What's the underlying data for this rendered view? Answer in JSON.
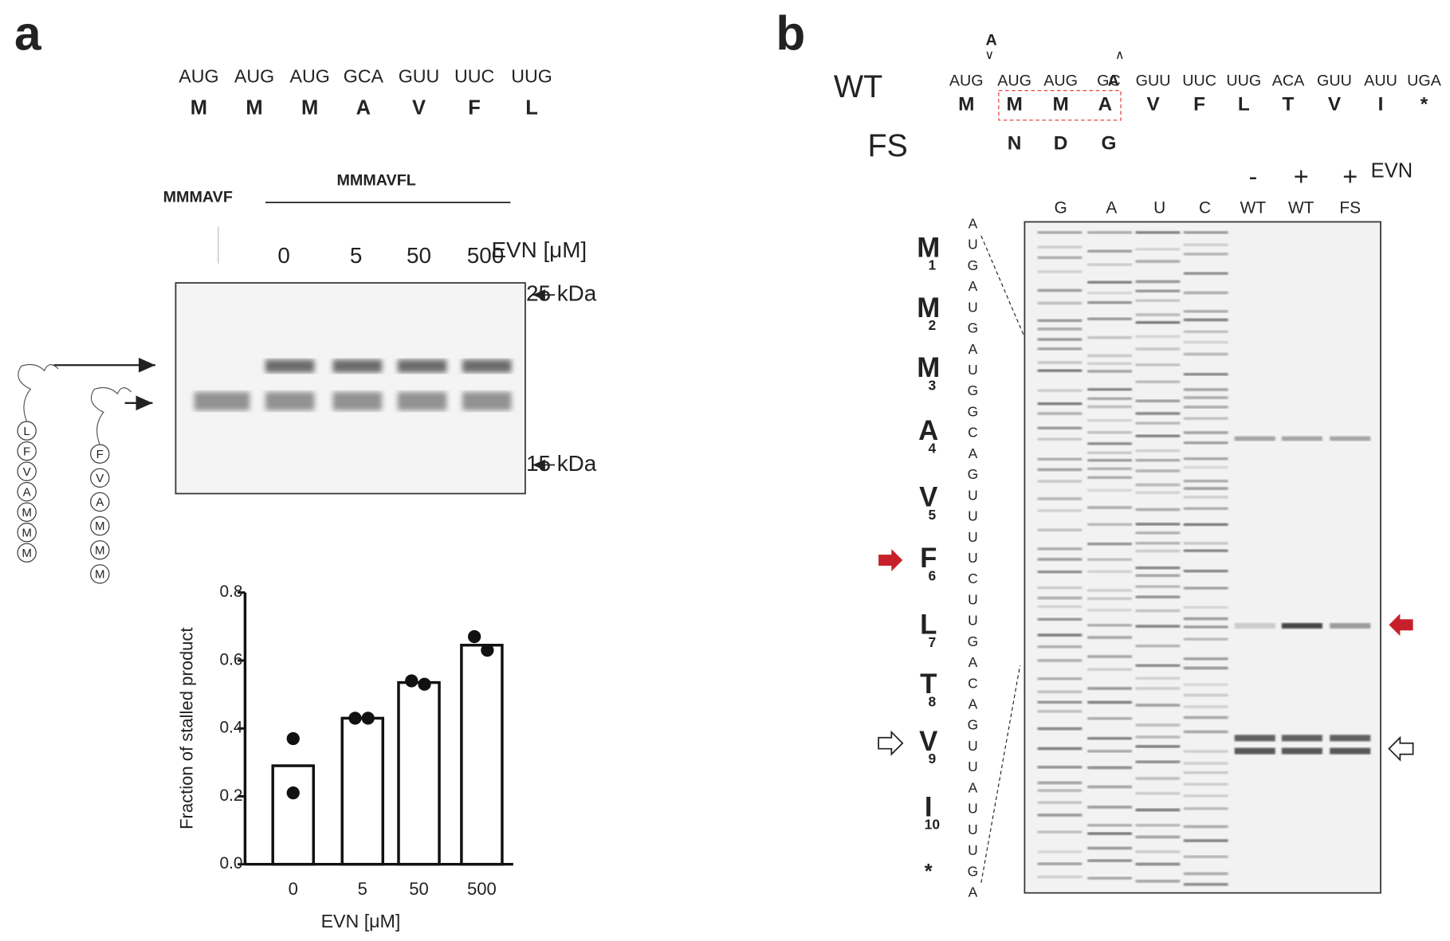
{
  "panel_a": {
    "label": "a",
    "codons": [
      "AUG",
      "AUG",
      "AUG",
      "GCA",
      "GUU",
      "UUC",
      "UUG"
    ],
    "amino_acids": [
      "M",
      "M",
      "M",
      "A",
      "V",
      "F",
      "L"
    ],
    "construct_short": "MMMAVF",
    "construct_long": "MMMAVFL",
    "lanes": [
      "0",
      "5",
      "50",
      "500"
    ],
    "lane_axis": "EVN [μM]",
    "markers": [
      "25 kDa",
      "15 kDa"
    ],
    "chain_long": [
      "L",
      "F",
      "V",
      "A",
      "M",
      "M",
      "M"
    ],
    "chain_short": [
      "F",
      "V",
      "A",
      "M",
      "M",
      "M"
    ]
  },
  "chart_data": {
    "type": "bar",
    "categories": [
      "0",
      "5",
      "50",
      "500"
    ],
    "values": [
      0.29,
      0.43,
      0.535,
      0.645
    ],
    "replicates": [
      [
        0.37,
        0.21
      ],
      [
        0.43,
        0.43
      ],
      [
        0.54,
        0.53
      ],
      [
        0.67,
        0.63
      ]
    ],
    "ylim": [
      0,
      0.8
    ],
    "yticks": [
      {
        "value": 0,
        "label": "0.0"
      },
      0.2,
      0.4,
      0.6,
      0.8
    ],
    "ylabel": "Fraction of stalled product",
    "xlabel": "EVN [μM]",
    "color": "#ffffff"
  },
  "panel_b": {
    "label": "b",
    "wt_label": "WT",
    "fs_label": "FS",
    "inserted": "A",
    "codons": [
      "AUG",
      "AUG",
      "AUG",
      "GC",
      "GUU",
      "UUC",
      "UUG",
      "ACA",
      "GUU",
      "AUU",
      "UGA"
    ],
    "codon_tail": "A",
    "wt_aa": [
      "M",
      "M",
      "M",
      "A",
      "V",
      "F",
      "L",
      "T",
      "V",
      "I",
      "*"
    ],
    "fs_aa": [
      "N",
      "D",
      "G"
    ],
    "evn_signs": [
      "-",
      "+",
      "+"
    ],
    "evn_label": "EVN",
    "lanes": [
      "G",
      "A",
      "U",
      "C",
      "WT",
      "WT",
      "FS"
    ],
    "sequence": [
      "A",
      "U",
      "G",
      "A",
      "U",
      "G",
      "A",
      "U",
      "G",
      "G",
      "C",
      "A",
      "G",
      "U",
      "U",
      "U",
      "U",
      "C",
      "U",
      "U",
      "G",
      "A",
      "C",
      "A",
      "G",
      "U",
      "U",
      "A",
      "U",
      "U",
      "U",
      "G",
      "A"
    ],
    "residues": [
      {
        "aa": "M",
        "sub": "1"
      },
      {
        "aa": "M",
        "sub": "2"
      },
      {
        "aa": "M",
        "sub": "3"
      },
      {
        "aa": "A",
        "sub": "4"
      },
      {
        "aa": "V",
        "sub": "5"
      },
      {
        "aa": "F",
        "sub": "6"
      },
      {
        "aa": "L",
        "sub": "7"
      },
      {
        "aa": "T",
        "sub": "8"
      },
      {
        "aa": "V",
        "sub": "9"
      },
      {
        "aa": "I",
        "sub": "10"
      },
      {
        "aa": "*"
      }
    ]
  }
}
